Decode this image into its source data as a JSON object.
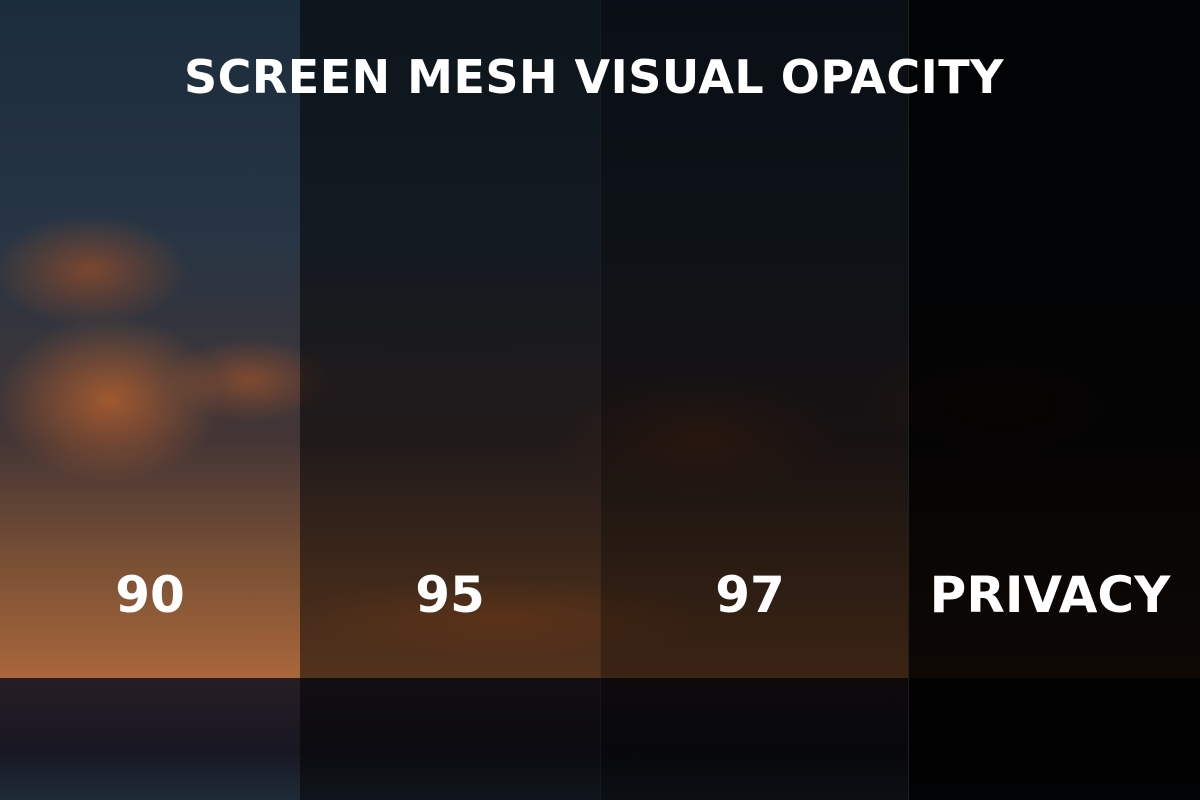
{
  "title": "SCREEN MESH VISUAL OPACITY",
  "panels": [
    {
      "label": "90"
    },
    {
      "label": "95"
    },
    {
      "label": "97"
    },
    {
      "label": "PRIVACY"
    }
  ]
}
